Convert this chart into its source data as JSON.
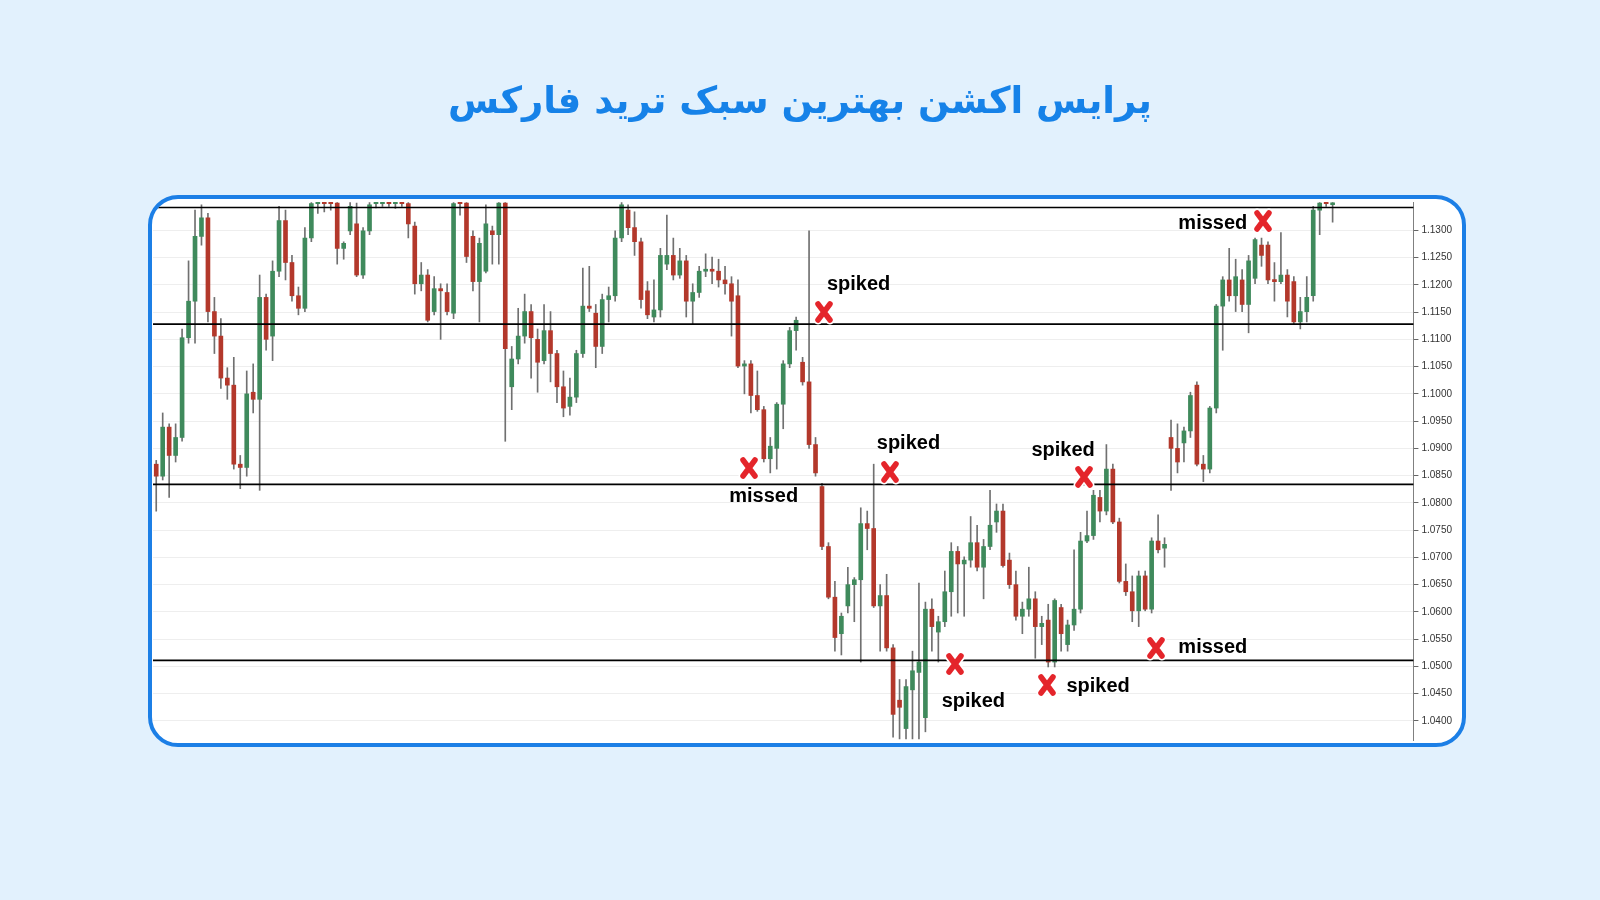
{
  "chart_data": {
    "type": "candlestick",
    "title": "پرایس اکشن بهترین سبک ترید فارکس",
    "categories": [
      null,
      null,
      null,
      null,
      null,
      null,
      null,
      null,
      null,
      null,
      null,
      null,
      null,
      null,
      null,
      null,
      null,
      null,
      null,
      null,
      null,
      null,
      null,
      null,
      null,
      null,
      null,
      null,
      null,
      null,
      null,
      null,
      null,
      null,
      null,
      null,
      null,
      null,
      null,
      null,
      null,
      null,
      null,
      null,
      null,
      null,
      null,
      null,
      null,
      null,
      null,
      null,
      null,
      null,
      null,
      null,
      null,
      null,
      null,
      null,
      null,
      null,
      null,
      null,
      null,
      null,
      null,
      null,
      null,
      null,
      null,
      null,
      null,
      null,
      null,
      null,
      null,
      null,
      null,
      null,
      null,
      null,
      null,
      null,
      null,
      null,
      null,
      null,
      null,
      null,
      null,
      null,
      null,
      null,
      null,
      null,
      null,
      null,
      null,
      null,
      null,
      null,
      null,
      null,
      null,
      null,
      null,
      null,
      null,
      null,
      null,
      null,
      null,
      null,
      null,
      null,
      null,
      null,
      null,
      null,
      null,
      null,
      null,
      null,
      null,
      null,
      null,
      null,
      null,
      null,
      null,
      null,
      null,
      null,
      null,
      null,
      null,
      null,
      null,
      null,
      null,
      null,
      null,
      null,
      null,
      null,
      null,
      null,
      null,
      null,
      null,
      null,
      null,
      null,
      null,
      null,
      null,
      null,
      null,
      null,
      null,
      null,
      null,
      null,
      null,
      null,
      null,
      null,
      null,
      null,
      null,
      null,
      null,
      null,
      null,
      null,
      null,
      null,
      null,
      null,
      null,
      null,
      null,
      null,
      null,
      null,
      null,
      null,
      null,
      null,
      null,
      null,
      null,
      null,
      null
    ],
    "ohlc": [
      [
        1.0871,
        1.0878,
        1.0785,
        1.0849
      ],
      [
        1.0849,
        1.0965,
        1.0842,
        1.0939
      ],
      [
        1.0939,
        1.0945,
        1.081,
        1.0887
      ],
      [
        1.0887,
        1.0945,
        1.0875,
        1.092
      ],
      [
        1.092,
        1.1119,
        1.0913,
        1.1103
      ],
      [
        1.1103,
        1.1244,
        1.1093,
        1.117
      ],
      [
        1.117,
        1.1337,
        1.1093,
        1.1289
      ],
      [
        1.1289,
        1.1347,
        1.1273,
        1.1323
      ],
      [
        1.1323,
        1.1331,
        1.1132,
        1.1151
      ],
      [
        1.1151,
        1.1177,
        1.1074,
        1.1106
      ],
      [
        1.1106,
        1.1138,
        1.101,
        1.1029
      ],
      [
        1.1029,
        1.1048,
        1.099,
        1.1016
      ],
      [
        1.1016,
        1.1067,
        1.0862,
        1.0871
      ],
      [
        1.0871,
        1.0887,
        1.0826,
        1.0865
      ],
      [
        1.0865,
        1.1042,
        1.0849,
        1.1
      ],
      [
        1.1003,
        1.1055,
        1.0965,
        1.099
      ],
      [
        1.099,
        1.1218,
        1.0823,
        1.1177
      ],
      [
        1.1177,
        1.1183,
        1.108,
        1.11
      ],
      [
        1.1106,
        1.1244,
        1.1061,
        1.1225
      ],
      [
        1.1225,
        1.1344,
        1.1215,
        1.1318
      ],
      [
        1.1318,
        1.1337,
        1.1209,
        1.1241
      ],
      [
        1.1241,
        1.1254,
        1.117,
        1.118
      ],
      [
        1.118,
        1.1196,
        1.1145,
        1.1157
      ],
      [
        1.1157,
        1.1305,
        1.1151,
        1.1286
      ],
      [
        1.1286,
        1.1351,
        1.1279,
        1.1349
      ],
      [
        1.1349,
        1.1351,
        1.1331,
        1.135
      ],
      [
        1.135,
        1.1351,
        1.1334,
        1.1349
      ],
      [
        1.135,
        1.1351,
        1.1337,
        1.1349
      ],
      [
        1.135,
        1.1351,
        1.1238,
        1.1267
      ],
      [
        1.1267,
        1.1279,
        1.1247,
        1.1276
      ],
      [
        1.1299,
        1.1351,
        1.1292,
        1.1344
      ],
      [
        1.1312,
        1.135,
        1.1215,
        1.1218
      ],
      [
        1.1218,
        1.1305,
        1.1212,
        1.1299
      ],
      [
        1.1299,
        1.1351,
        1.1292,
        1.1347
      ],
      [
        1.1349,
        1.1351,
        1.1341,
        1.135
      ],
      [
        1.1349,
        1.1351,
        1.1344,
        1.135
      ],
      [
        1.135,
        1.1351,
        1.1344,
        1.1349
      ],
      [
        1.1349,
        1.1351,
        1.134,
        1.135
      ],
      [
        1.135,
        1.1351,
        1.1344,
        1.1349
      ],
      [
        1.1349,
        1.1351,
        1.1286,
        1.1312
      ],
      [
        1.1308,
        1.1315,
        1.1183,
        1.1202
      ],
      [
        1.1202,
        1.1241,
        1.1189,
        1.1218
      ],
      [
        1.1218,
        1.1228,
        1.1132,
        1.1135
      ],
      [
        1.1151,
        1.1215,
        1.1145,
        1.1193
      ],
      [
        1.1193,
        1.1202,
        1.11,
        1.1189
      ],
      [
        1.1186,
        1.1202,
        1.1145,
        1.1151
      ],
      [
        1.1148,
        1.1351,
        1.1138,
        1.1349
      ],
      [
        1.135,
        1.1351,
        1.1328,
        1.1349
      ],
      [
        1.135,
        1.1351,
        1.1241,
        1.1252
      ],
      [
        1.1289,
        1.1299,
        1.1189,
        1.1206
      ],
      [
        1.1206,
        1.1286,
        1.1132,
        1.1276
      ],
      [
        1.1225,
        1.1347,
        1.1222,
        1.1312
      ],
      [
        1.1299,
        1.1308,
        1.1238,
        1.1292
      ],
      [
        1.1292,
        1.1351,
        1.1238,
        1.135
      ],
      [
        1.135,
        1.1351,
        1.0913,
        1.1083
      ],
      [
        1.1013,
        1.1087,
        1.0971,
        1.1064
      ],
      [
        1.1064,
        1.1157,
        1.1055,
        1.1106
      ],
      [
        1.1106,
        1.1183,
        1.1093,
        1.1151
      ],
      [
        1.1151,
        1.1164,
        1.1029,
        1.1103
      ],
      [
        1.11,
        1.1119,
        1.1003,
        1.1058
      ],
      [
        1.1061,
        1.1164,
        1.1055,
        1.1116
      ],
      [
        1.1116,
        1.1151,
        1.1022,
        1.1074
      ],
      [
        1.1074,
        1.108,
        1.0984,
        1.1013
      ],
      [
        1.1013,
        1.1042,
        1.0958,
        1.0974
      ],
      [
        1.0977,
        1.1029,
        1.0961,
        1.0994
      ],
      [
        1.0994,
        1.108,
        1.0984,
        1.1074
      ],
      [
        1.1074,
        1.1231,
        1.1067,
        1.1161
      ],
      [
        1.1161,
        1.1234,
        1.1151,
        1.1157
      ],
      [
        1.1148,
        1.1164,
        1.1048,
        1.1087
      ],
      [
        1.1087,
        1.1183,
        1.1074,
        1.1173
      ],
      [
        1.1173,
        1.1196,
        1.1132,
        1.118
      ],
      [
        1.118,
        1.1299,
        1.117,
        1.1286
      ],
      [
        1.1286,
        1.1351,
        1.1279,
        1.1347
      ],
      [
        1.1337,
        1.1347,
        1.1292,
        1.1305
      ],
      [
        1.1305,
        1.1334,
        1.1254,
        1.1279
      ],
      [
        1.1279,
        1.1286,
        1.1157,
        1.1173
      ],
      [
        1.1189,
        1.1206,
        1.1138,
        1.1145
      ],
      [
        1.1141,
        1.1209,
        1.1132,
        1.1154
      ],
      [
        1.1154,
        1.1267,
        1.1141,
        1.1254
      ],
      [
        1.1238,
        1.1328,
        1.1228,
        1.1254
      ],
      [
        1.1254,
        1.1286,
        1.1209,
        1.1218
      ],
      [
        1.1218,
        1.1267,
        1.1212,
        1.1244
      ],
      [
        1.1244,
        1.1254,
        1.1141,
        1.117
      ],
      [
        1.117,
        1.1202,
        1.1128,
        1.1186
      ],
      [
        1.1186,
        1.1234,
        1.1177,
        1.1225
      ],
      [
        1.1225,
        1.1257,
        1.1215,
        1.1228
      ],
      [
        1.1228,
        1.1251,
        1.1202,
        1.1225
      ],
      [
        1.1225,
        1.1247,
        1.1196,
        1.1209
      ],
      [
        1.1209,
        1.1234,
        1.1183,
        1.1202
      ],
      [
        1.1202,
        1.1215,
        1.1106,
        1.117
      ],
      [
        1.118,
        1.1209,
        1.1048,
        1.1051
      ],
      [
        1.1051,
        1.1061,
        1.1,
        1.1055
      ],
      [
        1.1055,
        1.1061,
        1.0965,
        1.0997
      ],
      [
        1.0997,
        1.1042,
        1.0968,
        1.0971
      ],
      [
        1.0971,
        1.0977,
        1.0875,
        1.0881
      ],
      [
        1.0881,
        1.092,
        1.0855,
        1.0904
      ],
      [
        1.09,
        1.0984,
        1.0862,
        1.0981
      ],
      [
        1.0981,
        1.1061,
        1.0936,
        1.1055
      ],
      [
        1.1055,
        1.1122,
        1.1048,
        1.1116
      ],
      [
        1.1116,
        1.1141,
        1.108,
        1.1135
      ],
      [
        1.1058,
        1.1067,
        1.1016,
        1.1022
      ],
      [
        1.1022,
        1.1299,
        1.09,
        1.0907
      ],
      [
        1.0907,
        1.092,
        1.0849,
        1.0855
      ],
      [
        1.083,
        1.0836,
        1.0714,
        1.072
      ],
      [
        1.072,
        1.0727,
        1.0624,
        1.0627
      ],
      [
        1.0627,
        1.0656,
        1.0528,
        1.0553
      ],
      [
        1.056,
        1.0598,
        1.0521,
        1.0592
      ],
      [
        1.0611,
        1.0682,
        1.0598,
        1.065
      ],
      [
        1.065,
        1.0663,
        1.0582,
        1.0659
      ],
      [
        1.0659,
        1.0791,
        1.0508,
        1.0762
      ],
      [
        1.0762,
        1.0785,
        1.0714,
        1.0753
      ],
      [
        1.0753,
        1.0871,
        1.0608,
        1.0611
      ],
      [
        1.0611,
        1.065,
        1.0528,
        1.063
      ],
      [
        1.063,
        1.0669,
        1.0528,
        1.0534
      ],
      [
        1.0534,
        1.054,
        1.037,
        1.0412
      ],
      [
        1.0438,
        1.0476,
        1.0367,
        1.0425
      ],
      [
        1.0386,
        1.0476,
        1.0367,
        1.0463
      ],
      [
        1.0457,
        1.0528,
        1.0367,
        1.0492
      ],
      [
        1.0489,
        1.0653,
        1.0367,
        1.0508
      ],
      [
        1.0406,
        1.0618,
        1.038,
        1.0605
      ],
      [
        1.0605,
        1.0624,
        1.0528,
        1.0573
      ],
      [
        1.0563,
        1.0592,
        1.0508,
        1.0582
      ],
      [
        1.0582,
        1.0675,
        1.0573,
        1.0637
      ],
      [
        1.0637,
        1.0727,
        1.0592,
        1.0711
      ],
      [
        1.0711,
        1.072,
        1.0598,
        1.0688
      ],
      [
        1.0688,
        1.0701,
        1.0592,
        1.0695
      ],
      [
        1.0695,
        1.0775,
        1.0682,
        1.0727
      ],
      [
        1.0727,
        1.0759,
        1.0675,
        1.0682
      ],
      [
        1.0682,
        1.0733,
        1.0624,
        1.072
      ],
      [
        1.072,
        1.0823,
        1.0714,
        1.0759
      ],
      [
        1.0765,
        1.0798,
        1.0746,
        1.0785
      ],
      [
        1.0785,
        1.0798,
        1.0682,
        1.0685
      ],
      [
        1.0695,
        1.0708,
        1.0643,
        1.065
      ],
      [
        1.065,
        1.0675,
        1.0585,
        1.0592
      ],
      [
        1.0592,
        1.0618,
        1.056,
        1.0605
      ],
      [
        1.0605,
        1.0682,
        1.0592,
        1.0624
      ],
      [
        1.0624,
        1.0637,
        1.0515,
        1.0573
      ],
      [
        1.0573,
        1.0592,
        1.054,
        1.0579
      ],
      [
        1.0585,
        1.0614,
        1.0499,
        1.0508
      ],
      [
        1.0508,
        1.0624,
        1.0499,
        1.0621
      ],
      [
        1.0608,
        1.0614,
        1.0528,
        1.056
      ],
      [
        1.054,
        1.0585,
        1.0528,
        1.0576
      ],
      [
        1.0576,
        1.0714,
        1.0566,
        1.0605
      ],
      [
        1.0605,
        1.0746,
        1.0598,
        1.073
      ],
      [
        1.073,
        1.0785,
        1.0727,
        1.074
      ],
      [
        1.074,
        1.0823,
        1.0733,
        1.0814
      ],
      [
        1.081,
        1.0823,
        1.0765,
        1.0785
      ],
      [
        1.0785,
        1.0907,
        1.0778,
        1.0862
      ],
      [
        1.0862,
        1.0871,
        1.0762,
        1.0765
      ],
      [
        1.0765,
        1.0772,
        1.0653,
        1.0656
      ],
      [
        1.0656,
        1.0688,
        1.063,
        1.0637
      ],
      [
        1.0637,
        1.0666,
        1.0582,
        1.0602
      ],
      [
        1.0602,
        1.0675,
        1.0573,
        1.0666
      ],
      [
        1.0666,
        1.0675,
        1.0602,
        1.0605
      ],
      [
        1.0605,
        1.0736,
        1.0598,
        1.073
      ],
      [
        1.073,
        1.0778,
        1.0708,
        1.0714
      ],
      [
        1.0717,
        1.0736,
        1.0682,
        1.0724
      ],
      [
        1.092,
        1.0952,
        1.0823,
        1.09
      ],
      [
        1.09,
        1.0945,
        1.0855,
        1.0875
      ],
      [
        1.091,
        1.0939,
        1.0875,
        1.0932
      ],
      [
        1.0932,
        1.1003,
        1.092,
        1.0997
      ],
      [
        1.1016,
        1.1022,
        1.0868,
        1.0871
      ],
      [
        1.0871,
        1.0887,
        1.0839,
        1.0862
      ],
      [
        1.0862,
        1.0977,
        1.0855,
        1.0974
      ],
      [
        1.0974,
        1.1164,
        1.0965,
        1.1161
      ],
      [
        1.1161,
        1.1215,
        1.108,
        1.1209
      ],
      [
        1.1209,
        1.1267,
        1.117,
        1.118
      ],
      [
        1.118,
        1.1247,
        1.1151,
        1.1215
      ],
      [
        1.1209,
        1.1228,
        1.1151,
        1.1164
      ],
      [
        1.1164,
        1.1254,
        1.1112,
        1.1244
      ],
      [
        1.1212,
        1.1286,
        1.1202,
        1.1283
      ],
      [
        1.1273,
        1.1286,
        1.1234,
        1.1254
      ],
      [
        1.1273,
        1.1279,
        1.1202,
        1.1209
      ],
      [
        1.1209,
        1.1241,
        1.117,
        1.1206
      ],
      [
        1.1206,
        1.1296,
        1.1202,
        1.1218
      ],
      [
        1.1218,
        1.1228,
        1.1141,
        1.117
      ],
      [
        1.1206,
        1.1215,
        1.1128,
        1.1132
      ],
      [
        1.1132,
        1.1177,
        1.1119,
        1.1151
      ],
      [
        1.1151,
        1.1215,
        1.1132,
        1.1177
      ],
      [
        1.118,
        1.1344,
        1.117,
        1.1337
      ],
      [
        1.1337,
        1.1351,
        1.1292,
        1.135
      ],
      [
        1.135,
        1.1351,
        1.1344,
        1.1349
      ],
      [
        1.1347,
        1.1351,
        1.1315,
        1.1349
      ],
      null,
      null,
      null,
      null,
      null,
      null,
      null,
      null,
      null,
      null,
      null,
      null
    ],
    "ylim": [
      1.0365,
      1.1352
    ],
    "yticks": [
      {
        "value": 1.04,
        "label": "1.0400"
      },
      {
        "value": 1.045,
        "label": "1.0450"
      },
      {
        "value": 1.05,
        "label": "1.0500"
      },
      {
        "value": 1.055,
        "label": "1.0550"
      },
      {
        "value": 1.06,
        "label": "1.0600"
      },
      {
        "value": 1.065,
        "label": "1.0650"
      },
      {
        "value": 1.07,
        "label": "1.0700"
      },
      {
        "value": 1.075,
        "label": "1.0750"
      },
      {
        "value": 1.08,
        "label": "1.0800"
      },
      {
        "value": 1.085,
        "label": "1.0850"
      },
      {
        "value": 1.09,
        "label": "1.0900"
      },
      {
        "value": 1.095,
        "label": "1.0950"
      },
      {
        "value": 1.1,
        "label": "1.1000"
      },
      {
        "value": 1.105,
        "label": "1.1050"
      },
      {
        "value": 1.11,
        "label": "1.1100"
      },
      {
        "value": 1.115,
        "label": "1.1150"
      },
      {
        "value": 1.12,
        "label": "1.1200"
      },
      {
        "value": 1.125,
        "label": "1.1250"
      },
      {
        "value": 1.13,
        "label": "1.1300"
      }
    ],
    "grid": "y",
    "ref_lines": [
      {
        "axis": "y",
        "value": 1.1342,
        "color": "#000000"
      },
      {
        "axis": "y",
        "value": 1.1128,
        "color": "#000000"
      },
      {
        "axis": "y",
        "value": 1.0834,
        "color": "#000000"
      },
      {
        "axis": "y",
        "value": 1.0511,
        "color": "#000000"
      }
    ],
    "annotations": [
      "missed",
      "spiked",
      "spiked",
      "spiked",
      "missed",
      "missed",
      "spiked",
      "spiked"
    ]
  }
}
